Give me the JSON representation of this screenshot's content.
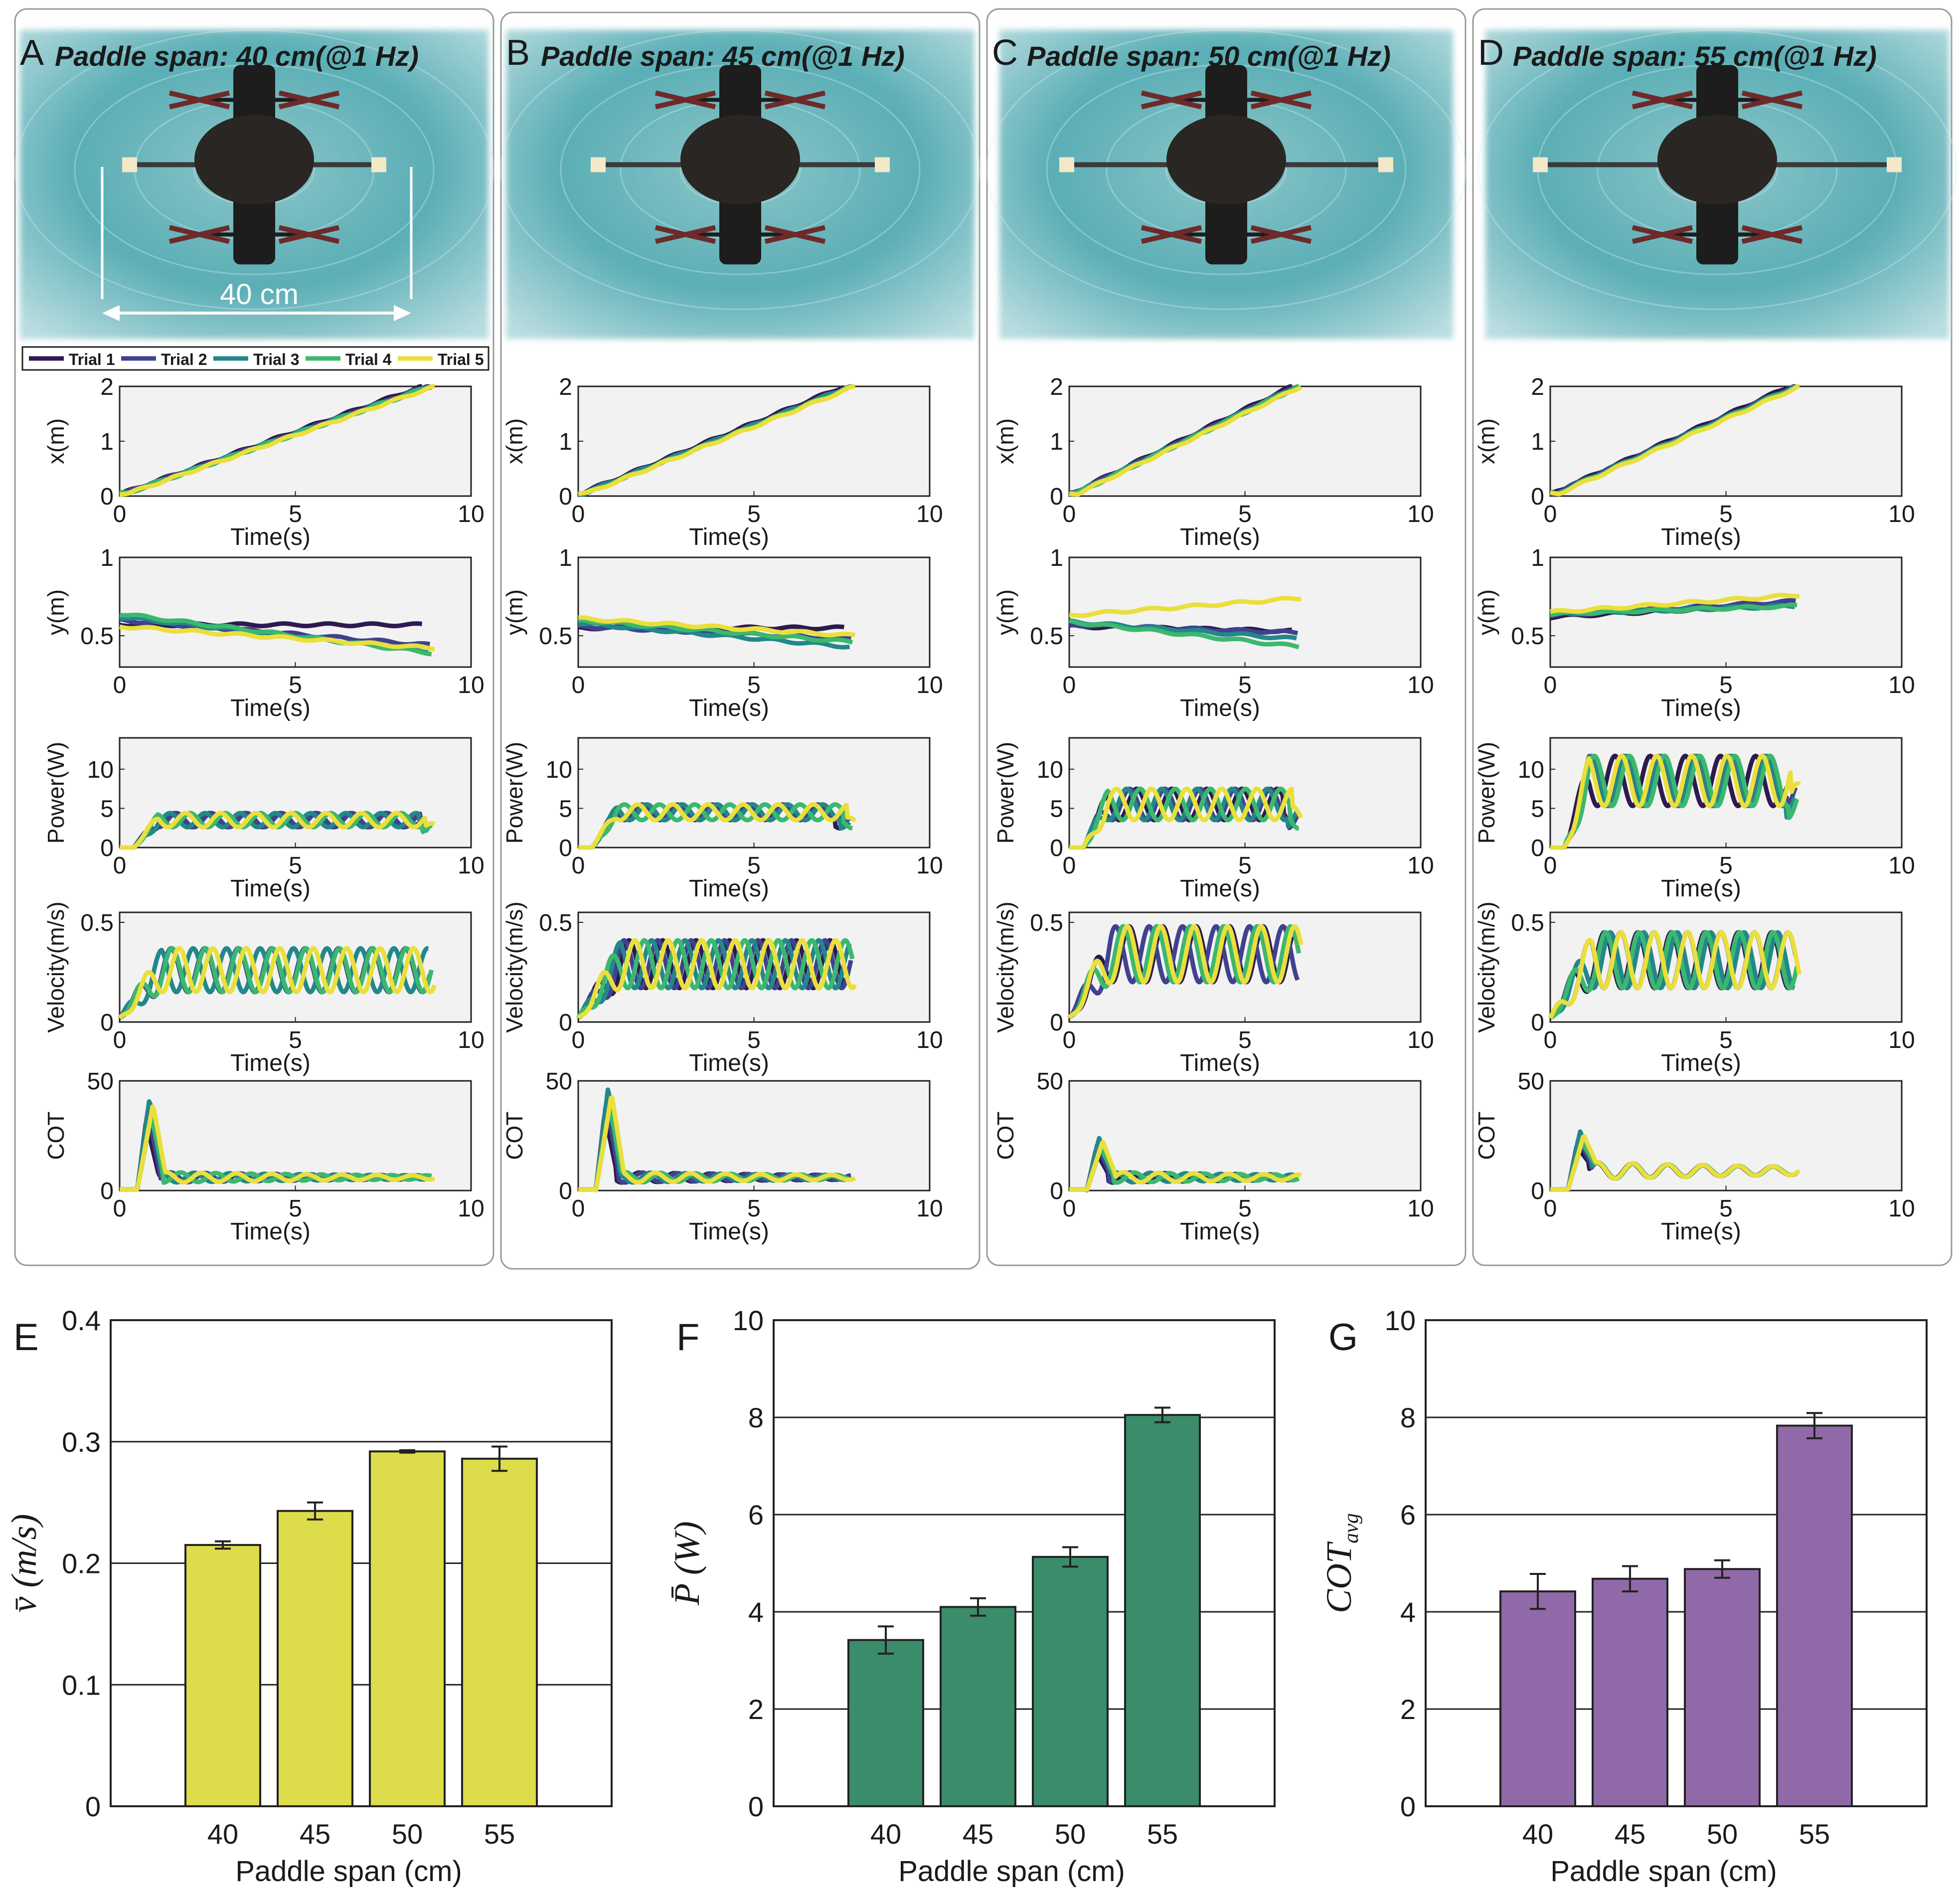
{
  "figure": {
    "panels": [
      {
        "letter": "A",
        "title": "Paddle span: 40 cm(@1 Hz)",
        "scale_label": "40 cm"
      },
      {
        "letter": "B",
        "title": "Paddle span: 45 cm(@1 Hz)"
      },
      {
        "letter": "C",
        "title": "Paddle span: 50 cm(@1 Hz)"
      },
      {
        "letter": "D",
        "title": "Paddle span: 55 cm(@1 Hz)"
      }
    ],
    "legend": [
      {
        "label": "Trial 1",
        "color": "#2e1a4f"
      },
      {
        "label": "Trial 2",
        "color": "#40428f"
      },
      {
        "label": "Trial 3",
        "color": "#23878a"
      },
      {
        "label": "Trial 4",
        "color": "#3bb86e"
      },
      {
        "label": "Trial 5",
        "color": "#eadf3c"
      }
    ],
    "common_xlabel": "Time(s)"
  },
  "chart_data": [
    {
      "type": "line",
      "group": "time-series",
      "panels": [
        "A",
        "B",
        "C",
        "D"
      ],
      "xlabel": "Time(s)",
      "xlim": [
        0,
        10
      ],
      "xticks": [
        0,
        5,
        10
      ],
      "duration_s": {
        "A": 9.1,
        "B": 8.0,
        "C": 6.7,
        "D": 7.2
      },
      "rows": [
        {
          "ylabel": "x(m)",
          "ylim": [
            0,
            2
          ],
          "yticks": [
            0,
            1,
            2
          ],
          "description": "position rises roughly linearly from ~0.05 m to ~2 m over the run"
        },
        {
          "ylabel": "y(m)",
          "ylim": [
            0.3,
            1
          ],
          "yticks": [
            0.5,
            1
          ],
          "start": {
            "A": [
              0.57,
              0.6,
              0.62,
              0.64,
              0.56
            ],
            "B": [
              0.55,
              0.56,
              0.58,
              0.6,
              0.61
            ],
            "C": [
              0.56,
              0.57,
              0.59,
              0.59,
              0.63
            ],
            "D": [
              0.62,
              0.63,
              0.64,
              0.64,
              0.65
            ]
          },
          "end": {
            "A": [
              0.57,
              0.44,
              0.4,
              0.39,
              0.42
            ],
            "B": [
              0.55,
              0.48,
              0.43,
              0.46,
              0.5
            ],
            "C": [
              0.53,
              0.52,
              0.48,
              0.43,
              0.74
            ],
            "D": [
              0.7,
              0.72,
              0.69,
              0.69,
              0.76
            ]
          }
        },
        {
          "ylabel": "Power(W)",
          "ylim": [
            0,
            14
          ],
          "yticks": [
            0,
            5,
            10
          ],
          "mean": {
            "A": 3.5,
            "B": 4.5,
            "C": 5.5,
            "D": 8.5
          },
          "amplitude": {
            "A": 0.9,
            "B": 1.0,
            "C": 2.0,
            "D": 3.2
          }
        },
        {
          "ylabel": "Velocity(m/s)",
          "ylim": [
            0,
            0.55
          ],
          "yticks": [
            0,
            0.5
          ],
          "mean": {
            "A": 0.24,
            "B": 0.27,
            "C": 0.32,
            "D": 0.29
          },
          "amplitude": {
            "A": 0.11,
            "B": 0.12,
            "C": 0.14,
            "D": 0.14
          }
        },
        {
          "ylabel": "COT",
          "ylim": [
            0,
            50
          ],
          "yticks": [
            0,
            50
          ],
          "peak": {
            "A": 42,
            "B": 47,
            "C": 24,
            "D": 27
          },
          "baseline": {
            "A": 5,
            "B": 5,
            "C": 5,
            "D": 8
          }
        }
      ]
    },
    {
      "type": "bar",
      "panel": "E",
      "categories": [
        "40",
        "45",
        "50",
        "55"
      ],
      "values": [
        0.215,
        0.243,
        0.292,
        0.286
      ],
      "errors": [
        0.003,
        0.007,
        0.001,
        0.01
      ],
      "xlabel": "Paddle span (cm)",
      "ylabel": "v̄ (m/s)",
      "ylim": [
        0,
        0.4
      ],
      "yticks": [
        "0",
        "0.1",
        "0.2",
        "0.3",
        "0.4"
      ],
      "color": "#dddc4a"
    },
    {
      "type": "bar",
      "panel": "F",
      "categories": [
        "40",
        "45",
        "50",
        "55"
      ],
      "values": [
        3.42,
        4.1,
        5.13,
        8.05
      ],
      "errors": [
        0.28,
        0.18,
        0.2,
        0.15
      ],
      "xlabel": "Paddle span (cm)",
      "ylabel": "P̄ (W)",
      "ylim": [
        0,
        10
      ],
      "yticks": [
        "0",
        "2",
        "4",
        "6",
        "8",
        "10"
      ],
      "color": "#3a8c6a"
    },
    {
      "type": "bar",
      "panel": "G",
      "categories": [
        "40",
        "45",
        "50",
        "55"
      ],
      "values": [
        4.42,
        4.68,
        4.88,
        7.83
      ],
      "errors": [
        0.36,
        0.26,
        0.18,
        0.26
      ],
      "xlabel": "Paddle span (cm)",
      "ylabel": "COT",
      "ylabel_sub": "avg",
      "ylim": [
        0,
        10
      ],
      "yticks": [
        "0",
        "2",
        "4",
        "6",
        "8",
        "10"
      ],
      "color": "#9069a8"
    }
  ]
}
